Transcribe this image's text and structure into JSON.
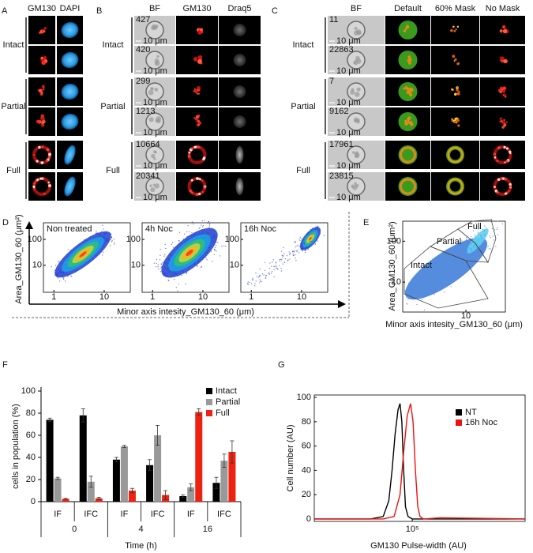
{
  "panel_labels": [
    "A",
    "B",
    "C",
    "D",
    "E",
    "F",
    "G"
  ],
  "panel_a": {
    "columns": [
      "GM130",
      "DAPI"
    ],
    "groups": [
      "Intact",
      "Partial",
      "Full"
    ]
  },
  "panel_b": {
    "columns": [
      "BF",
      "GM130",
      "Draq5"
    ],
    "groups": [
      "Intact",
      "Partial",
      "Full"
    ],
    "cell_ids": [
      "427",
      "420",
      "299",
      "1213",
      "10664",
      "20341"
    ],
    "scale_bar": "10 μm"
  },
  "panel_c": {
    "columns": [
      "BF",
      "Default",
      "60% Mask",
      "No Mask"
    ],
    "groups": [
      "Intact",
      "Partial",
      "Full"
    ],
    "cell_ids": [
      "11",
      "22863",
      "7",
      "9162",
      "17961",
      "23815"
    ],
    "scale_bar": "10 μm"
  },
  "panel_d": {
    "xlabel": "Minor axis intesity_GM130_60 (μm)",
    "ylabel": "Area_GM130_60 (μm²)"
  },
  "chart_data": [
    {
      "type": "density",
      "title": "Non treated",
      "log_x": true,
      "log_y": true,
      "xlim": [
        0.62,
        33
      ],
      "ylim": [
        0.9,
        440
      ],
      "xticks": [
        1,
        10
      ],
      "yticks": [
        10,
        100
      ]
    },
    {
      "type": "density",
      "title": "4h Noc",
      "log_x": true,
      "log_y": true,
      "xlim": [
        0.62,
        33
      ],
      "ylim": [
        0.9,
        440
      ],
      "xticks": [
        1,
        10
      ],
      "yticks": [
        10,
        100
      ]
    },
    {
      "type": "density",
      "title": "16h Noc",
      "log_x": true,
      "log_y": true,
      "xlim": [
        0.62,
        33
      ],
      "ylim": [
        0.9,
        440
      ],
      "xticks": [
        1,
        10
      ],
      "yticks": [
        10,
        100
      ]
    },
    {
      "type": "gate",
      "regions": [
        "Intact",
        "Partial",
        "Full"
      ],
      "xlabel": "Minor axis intesity_GM130_60 (μm)",
      "ylabel": "Area_GM130_60 (μm²)",
      "log_x": true,
      "log_y": true,
      "xlim": [
        0.25,
        100
      ],
      "ylim": [
        1.85,
        309
      ],
      "xticks": [
        10
      ],
      "yticks": [
        10,
        100
      ]
    },
    {
      "type": "bar",
      "categories": [
        "IF",
        "IFC",
        "IF",
        "IFC",
        "IF",
        "IFC"
      ],
      "time_groups": [
        0,
        4,
        16
      ],
      "xlabel": "Time (h)",
      "ylabel": "cells in population (%)",
      "ylim": [
        0,
        100
      ],
      "yticks": [
        0,
        20,
        40,
        60,
        80,
        100
      ],
      "legend": "upper right",
      "series": [
        {
          "name": "Intact",
          "color": "#000000",
          "values": [
            74,
            78,
            38,
            33,
            5,
            17
          ],
          "errors": [
            1.5,
            6,
            2,
            5,
            1,
            5
          ]
        },
        {
          "name": "Partial",
          "color": "#999999",
          "values": [
            21,
            18,
            50,
            60,
            13,
            37
          ],
          "errors": [
            1,
            5,
            1,
            9,
            3,
            6
          ]
        },
        {
          "name": "Full",
          "color": "#ee2211",
          "values": [
            2.5,
            3,
            10,
            6,
            81,
            45
          ],
          "errors": [
            0.5,
            1,
            2,
            4,
            3,
            10
          ]
        }
      ]
    },
    {
      "type": "line",
      "log_x": true,
      "xlim": [
        30000,
        400000
      ],
      "ylim": [
        -2,
        102
      ],
      "xticks": [
        {
          "value": 100000,
          "label": "10⁵"
        }
      ],
      "yticks": [
        0,
        20,
        40,
        60,
        80,
        100
      ],
      "xlabel": "GM130 Pulse-width (AU)",
      "ylabel": "Cell number (AU)",
      "legend": "upper right",
      "series": [
        {
          "name": "NT",
          "color": "#000000",
          "x": [
            30000,
            60000,
            70000,
            75000,
            78000,
            81000,
            84000,
            86000,
            88000,
            90000,
            92000,
            95000,
            100000,
            400000
          ],
          "values": [
            0,
            0,
            2,
            15,
            40,
            70,
            90,
            95,
            80,
            40,
            10,
            2,
            0,
            0
          ]
        },
        {
          "name": "16h Noc",
          "color": "#ee1111",
          "x": [
            30000,
            70000,
            80000,
            86000,
            90000,
            94000,
            98000,
            101000,
            104000,
            107000,
            110000,
            115000,
            140000,
            400000
          ],
          "values": [
            0,
            0,
            2,
            20,
            55,
            85,
            95,
            80,
            40,
            10,
            2,
            0,
            1,
            0
          ]
        }
      ]
    }
  ]
}
